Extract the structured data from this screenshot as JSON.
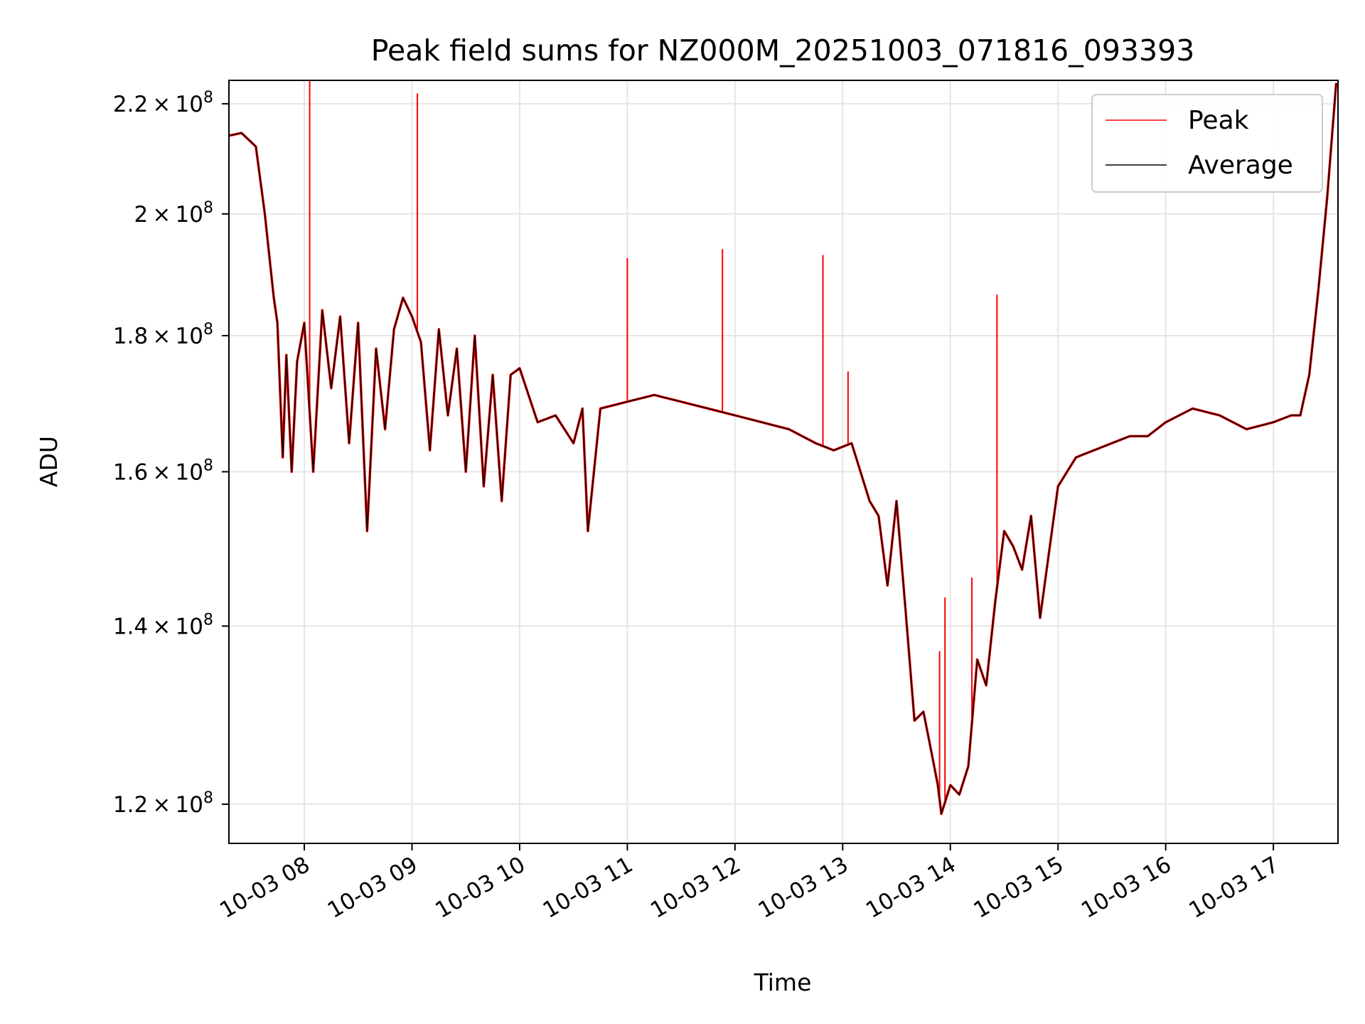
{
  "chart_data": {
    "type": "line",
    "title": "Peak field sums for NZ000M_20251003_071816_093393",
    "xlabel": "Time",
    "ylabel": "ADU",
    "yscale": "log",
    "xlim": [
      "2025-10-03 07:18",
      "2025-10-03 17:36"
    ],
    "ylim": [
      116000000,
      224500000
    ],
    "grid": true,
    "legend_position": "top-right",
    "colors": {
      "peak": "#ff0000",
      "average": "#000000",
      "grid": "#e6e6e6"
    },
    "x_ticks": [
      {
        "time": "2025-10-03 08:00",
        "label": "10-03 08"
      },
      {
        "time": "2025-10-03 09:00",
        "label": "10-03 09"
      },
      {
        "time": "2025-10-03 10:00",
        "label": "10-03 10"
      },
      {
        "time": "2025-10-03 11:00",
        "label": "10-03 11"
      },
      {
        "time": "2025-10-03 12:00",
        "label": "10-03 12"
      },
      {
        "time": "2025-10-03 13:00",
        "label": "10-03 13"
      },
      {
        "time": "2025-10-03 14:00",
        "label": "10-03 14"
      },
      {
        "time": "2025-10-03 15:00",
        "label": "10-03 15"
      },
      {
        "time": "2025-10-03 16:00",
        "label": "10-03 16"
      },
      {
        "time": "2025-10-03 17:00",
        "label": "10-03 17"
      }
    ],
    "y_ticks": [
      {
        "value": 120000000,
        "mantissa": "1.2",
        "exp": "8"
      },
      {
        "value": 140000000,
        "mantissa": "1.4",
        "exp": "8"
      },
      {
        "value": 160000000,
        "mantissa": "1.6",
        "exp": "8"
      },
      {
        "value": 180000000,
        "mantissa": "1.8",
        "exp": "8"
      },
      {
        "value": 200000000,
        "mantissa": "2",
        "exp": "8"
      },
      {
        "value": 220000000,
        "mantissa": "2.2",
        "exp": "8"
      }
    ],
    "series": [
      {
        "name": "Average",
        "key": "average",
        "x": [
          "2025-10-03 07:18",
          "2025-10-03 07:25",
          "2025-10-03 07:33",
          "2025-10-03 07:38",
          "2025-10-03 07:43",
          "2025-10-03 07:45",
          "2025-10-03 07:48",
          "2025-10-03 07:50",
          "2025-10-03 07:53",
          "2025-10-03 07:56",
          "2025-10-03 08:00",
          "2025-10-03 08:05",
          "2025-10-03 08:10",
          "2025-10-03 08:15",
          "2025-10-03 08:20",
          "2025-10-03 08:25",
          "2025-10-03 08:30",
          "2025-10-03 08:35",
          "2025-10-03 08:40",
          "2025-10-03 08:45",
          "2025-10-03 08:50",
          "2025-10-03 08:55",
          "2025-10-03 09:00",
          "2025-10-03 09:05",
          "2025-10-03 09:10",
          "2025-10-03 09:15",
          "2025-10-03 09:20",
          "2025-10-03 09:25",
          "2025-10-03 09:30",
          "2025-10-03 09:35",
          "2025-10-03 09:40",
          "2025-10-03 09:45",
          "2025-10-03 09:50",
          "2025-10-03 09:55",
          "2025-10-03 10:00",
          "2025-10-03 10:10",
          "2025-10-03 10:20",
          "2025-10-03 10:30",
          "2025-10-03 10:35",
          "2025-10-03 10:38",
          "2025-10-03 10:45",
          "2025-10-03 11:00",
          "2025-10-03 11:15",
          "2025-10-03 11:30",
          "2025-10-03 11:45",
          "2025-10-03 12:00",
          "2025-10-03 12:15",
          "2025-10-03 12:30",
          "2025-10-03 12:45",
          "2025-10-03 12:55",
          "2025-10-03 13:05",
          "2025-10-03 13:15",
          "2025-10-03 13:20",
          "2025-10-03 13:25",
          "2025-10-03 13:30",
          "2025-10-03 13:35",
          "2025-10-03 13:40",
          "2025-10-03 13:45",
          "2025-10-03 13:50",
          "2025-10-03 13:53",
          "2025-10-03 13:55",
          "2025-10-03 14:00",
          "2025-10-03 14:05",
          "2025-10-03 14:10",
          "2025-10-03 14:15",
          "2025-10-03 14:20",
          "2025-10-03 14:25",
          "2025-10-03 14:30",
          "2025-10-03 14:35",
          "2025-10-03 14:40",
          "2025-10-03 14:45",
          "2025-10-03 14:50",
          "2025-10-03 15:00",
          "2025-10-03 15:10",
          "2025-10-03 15:20",
          "2025-10-03 15:30",
          "2025-10-03 15:40",
          "2025-10-03 15:50",
          "2025-10-03 16:00",
          "2025-10-03 16:15",
          "2025-10-03 16:30",
          "2025-10-03 16:45",
          "2025-10-03 17:00",
          "2025-10-03 17:10",
          "2025-10-03 17:15",
          "2025-10-03 17:20",
          "2025-10-03 17:25",
          "2025-10-03 17:30",
          "2025-10-03 17:35"
        ],
        "values": [
          214000000,
          214500000,
          212000000,
          200000000,
          186000000,
          182000000,
          162000000,
          177000000,
          160000000,
          176000000,
          182000000,
          160000000,
          184000000,
          172000000,
          183000000,
          164000000,
          182000000,
          152000000,
          178000000,
          166000000,
          181000000,
          186000000,
          183000000,
          179000000,
          163000000,
          181000000,
          168000000,
          178000000,
          160000000,
          180000000,
          158000000,
          174000000,
          156000000,
          174000000,
          175000000,
          167000000,
          168000000,
          164000000,
          169000000,
          152000000,
          169000000,
          170000000,
          171000000,
          170000000,
          169000000,
          168000000,
          167000000,
          166000000,
          164000000,
          163000000,
          164000000,
          156000000,
          154000000,
          145000000,
          156000000,
          142000000,
          129000000,
          130000000,
          125000000,
          122000000,
          119000000,
          122000000,
          121000000,
          124000000,
          136000000,
          133000000,
          143000000,
          152000000,
          150000000,
          147000000,
          154000000,
          141000000,
          158000000,
          162000000,
          163000000,
          164000000,
          165000000,
          165000000,
          167000000,
          169000000,
          168000000,
          166000000,
          167000000,
          168000000,
          168000000,
          174000000,
          187000000,
          203000000,
          224000000
        ]
      },
      {
        "name": "Peak",
        "key": "peak",
        "spikes": [
          {
            "time": "2025-10-03 08:03",
            "value": 224500000
          },
          {
            "time": "2025-10-03 09:03",
            "value": 222000000
          },
          {
            "time": "2025-10-03 11:00",
            "value": 192500000
          },
          {
            "time": "2025-10-03 11:53",
            "value": 194000000
          },
          {
            "time": "2025-10-03 12:49",
            "value": 193000000
          },
          {
            "time": "2025-10-03 13:03",
            "value": 174500000
          },
          {
            "time": "2025-10-03 13:54",
            "value": 137000000
          },
          {
            "time": "2025-10-03 13:57",
            "value": 143500000
          },
          {
            "time": "2025-10-03 14:12",
            "value": 146000000
          },
          {
            "time": "2025-10-03 14:26",
            "value": 186500000
          }
        ]
      }
    ]
  }
}
